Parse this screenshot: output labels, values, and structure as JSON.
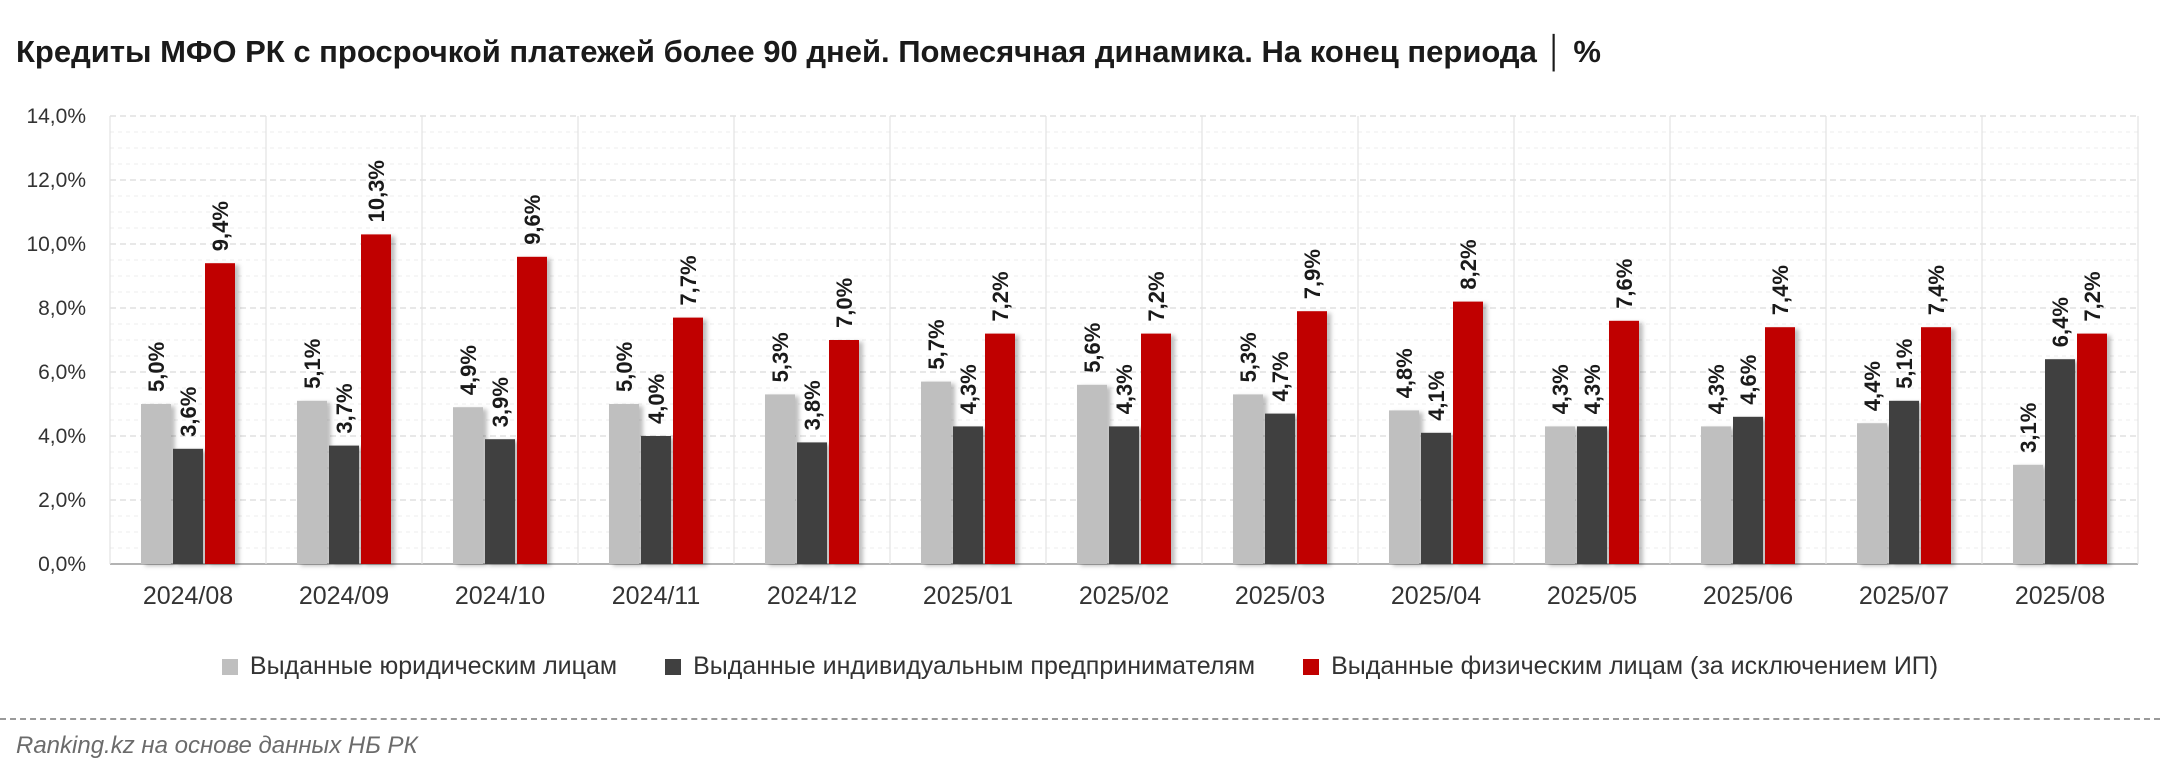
{
  "title": "Кредиты МФО РК с просрочкой платежей более 90 дней. Помесячная динамика. На конец периода │ %",
  "source": "Ranking.kz на основе данных НБ РК",
  "chart_data": {
    "type": "bar",
    "title": "Кредиты МФО РК с просрочкой платежей более 90 дней. Помесячная динамика. На конец периода │ %",
    "ylim": [
      0,
      14
    ],
    "ytick_step": 2,
    "ytick_labels": [
      "0,0%",
      "2,0%",
      "4,0%",
      "6,0%",
      "8,0%",
      "10,0%",
      "12,0%",
      "14,0%"
    ],
    "grid": true,
    "legend_position": "bottom",
    "categories": [
      "2024/08",
      "2024/09",
      "2024/10",
      "2024/11",
      "2024/12",
      "2025/01",
      "2025/02",
      "2025/03",
      "2025/04",
      "2025/05",
      "2025/06",
      "2025/07",
      "2025/08"
    ],
    "series": [
      {
        "name": "Выданные юридическим лицам",
        "color": "#bfbfbf",
        "values": [
          5.0,
          5.1,
          4.9,
          5.0,
          5.3,
          5.7,
          5.6,
          5.3,
          4.8,
          4.3,
          4.3,
          4.4,
          3.1
        ],
        "labels": [
          "5,0%",
          "5,1%",
          "4,9%",
          "5,0%",
          "5,3%",
          "5,7%",
          "5,6%",
          "5,3%",
          "4,8%",
          "4,3%",
          "4,3%",
          "4,4%",
          "3,1%"
        ]
      },
      {
        "name": "Выданные индивидуальным предпринимателям",
        "color": "#404040",
        "values": [
          3.6,
          3.7,
          3.9,
          4.0,
          3.8,
          4.3,
          4.3,
          4.7,
          4.1,
          4.3,
          4.6,
          5.1,
          6.4
        ],
        "labels": [
          "3,6%",
          "3,7%",
          "3,9%",
          "4,0%",
          "3,8%",
          "4,3%",
          "4,3%",
          "4,7%",
          "4,1%",
          "4,3%",
          "4,6%",
          "5,1%",
          "6,4%"
        ]
      },
      {
        "name": "Выданные физическим лицам (за исключением ИП)",
        "color": "#c00000",
        "values": [
          9.4,
          10.3,
          9.6,
          7.7,
          7.0,
          7.2,
          7.2,
          7.9,
          8.2,
          7.6,
          7.4,
          7.4,
          7.2
        ],
        "labels": [
          "9,4%",
          "10,3%",
          "9,6%",
          "7,7%",
          "7,0%",
          "7,2%",
          "7,2%",
          "7,9%",
          "8,2%",
          "7,6%",
          "7,4%",
          "7,4%",
          "7,2%"
        ]
      }
    ]
  }
}
